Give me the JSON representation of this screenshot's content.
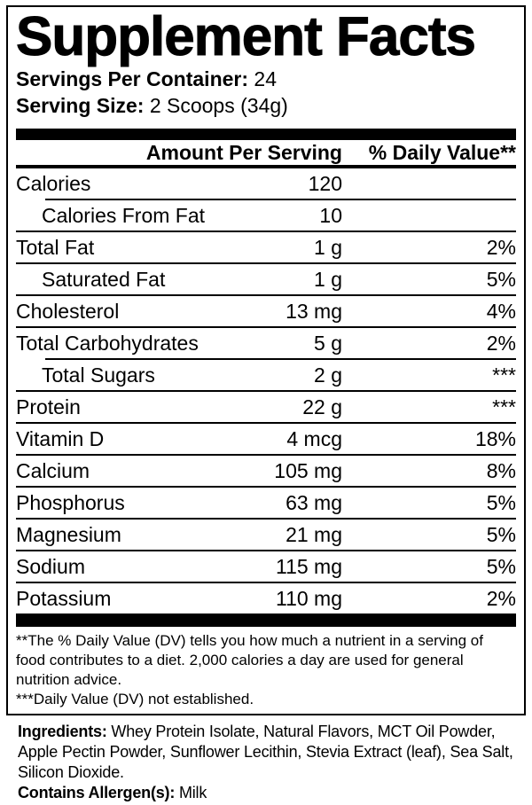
{
  "supplement_label": {
    "title": "Supplement Facts",
    "servings_per_container": {
      "label": "Servings Per Container:",
      "value": "24"
    },
    "serving_size": {
      "label": "Serving Size:",
      "value": "2 Scoops (34g)"
    },
    "table_header": {
      "amount": "Amount Per Serving",
      "daily_value": "% Daily Value**"
    },
    "rows": [
      {
        "nutrient": "Calories",
        "amount": "120",
        "dv": "",
        "indent": false,
        "sep_indent": true
      },
      {
        "nutrient": "Calories From Fat",
        "amount": "10",
        "dv": "",
        "indent": true,
        "sep_indent": false
      },
      {
        "nutrient": "Total Fat",
        "amount": "1 g",
        "dv": "2%",
        "indent": false,
        "sep_indent": false
      },
      {
        "nutrient": "Saturated Fat",
        "amount": "1 g",
        "dv": "5%",
        "indent": true,
        "sep_indent": false
      },
      {
        "nutrient": "Cholesterol",
        "amount": "13 mg",
        "dv": "4%",
        "indent": false,
        "sep_indent": false
      },
      {
        "nutrient": "Total Carbohydrates",
        "amount": "5 g",
        "dv": "2%",
        "indent": false,
        "sep_indent": true
      },
      {
        "nutrient": "Total Sugars",
        "amount": "2 g",
        "dv": "***",
        "indent": true,
        "sep_indent": false
      },
      {
        "nutrient": "Protein",
        "amount": "22 g",
        "dv": "***",
        "indent": false,
        "sep_indent": false
      },
      {
        "nutrient": "Vitamin D",
        "amount": "4 mcg",
        "dv": "18%",
        "indent": false,
        "sep_indent": false
      },
      {
        "nutrient": "Calcium",
        "amount": "105 mg",
        "dv": "8%",
        "indent": false,
        "sep_indent": false
      },
      {
        "nutrient": "Phosphorus",
        "amount": "63 mg",
        "dv": "5%",
        "indent": false,
        "sep_indent": false
      },
      {
        "nutrient": "Magnesium",
        "amount": "21 mg",
        "dv": "5%",
        "indent": false,
        "sep_indent": false
      },
      {
        "nutrient": "Sodium",
        "amount": "115 mg",
        "dv": "5%",
        "indent": false,
        "sep_indent": false
      },
      {
        "nutrient": "Potassium",
        "amount": "110 mg",
        "dv": "2%",
        "indent": false,
        "sep_indent": false
      }
    ],
    "footnotes": [
      "**The % Daily Value (DV) tells you how much a nutrient in a serving of food contributes to a diet. 2,000 calories a day are used for general nutrition advice.",
      "***Daily Value (DV) not established."
    ],
    "ingredients": {
      "label": "Ingredients:",
      "text": "Whey Protein Isolate, Natural Flavors, MCT Oil Powder, Apple Pectin Powder, Sunflower Lecithin, Stevia Extract (leaf), Sea Salt, Silicon Dioxide."
    },
    "allergens": {
      "label": "Contains Allergen(s):",
      "value": "Milk"
    },
    "colors": {
      "text": "#000000",
      "background": "#ffffff",
      "rule": "#000000"
    }
  }
}
